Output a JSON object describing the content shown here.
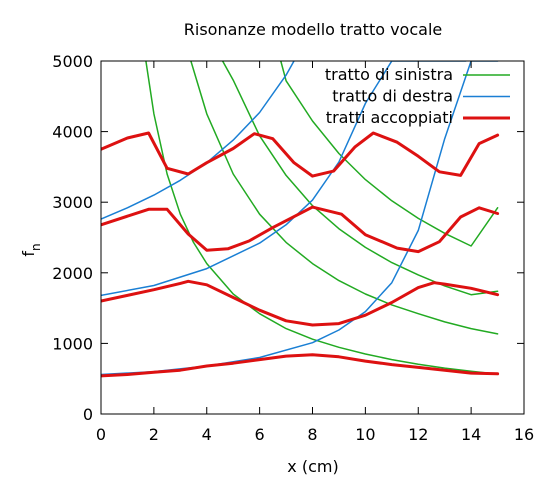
{
  "chart_data": {
    "type": "line",
    "title": "Risonanze modello tratto vocale",
    "xlabel": "x (cm)",
    "ylabel_main": "f",
    "ylabel_sub": "n",
    "xlim": [
      0,
      16
    ],
    "ylim": [
      0,
      5000
    ],
    "xticks": [
      "0",
      "2",
      "4",
      "6",
      "8",
      "10",
      "12",
      "14",
      "16"
    ],
    "yticks": [
      "0",
      "1000",
      "2000",
      "3000",
      "4000",
      "5000"
    ],
    "grid": false,
    "legend_position": "top-right",
    "legend": [
      {
        "label": "tratto di sinistra",
        "color": "#22aa22"
      },
      {
        "label": "tratto di destra",
        "color": "#1a7fd4"
      },
      {
        "label": "tratti accoppiati",
        "color": "#dd1111"
      }
    ],
    "series": [
      {
        "name": "tratto di sinistra",
        "color": "#22aa22",
        "width": 1.5,
        "curves": [
          {
            "x": [
              1.7,
              2.0,
              2.5,
              3.0,
              3.5,
              4.0,
              5.0,
              6.0,
              7.0,
              8.0,
              9.0,
              10.0,
              11.0,
              12.0,
              13.0,
              14.0,
              15.0
            ],
            "y": [
              5000,
              4250,
              3400,
              2830,
              2430,
              2130,
              1700,
              1420,
              1210,
              1060,
              945,
              850,
              770,
              705,
              650,
              605,
              565
            ]
          },
          {
            "x": [
              3.4,
              4.0,
              5.0,
              6.0,
              7.0,
              8.0,
              9.0,
              10.0,
              11.0,
              12.0,
              13.0,
              14.0,
              15.0
            ],
            "y": [
              5000,
              4250,
              3400,
              2830,
              2430,
              2130,
              1890,
              1700,
              1545,
              1420,
              1305,
              1210,
              1135
            ]
          },
          {
            "x": [
              4.6,
              5.0,
              6.0,
              7.0,
              8.0,
              9.0,
              10.0,
              11.0,
              12.0,
              13.0,
              14.0,
              15.0
            ],
            "y": [
              5000,
              4730,
              3940,
              3380,
              2950,
              2625,
              2360,
              2145,
              1970,
              1815,
              1690,
              1740
            ]
          },
          {
            "x": [
              6.8,
              7.0,
              8.0,
              9.0,
              10.0,
              11.0,
              12.0,
              13.0,
              14.0,
              15.0
            ],
            "y": [
              5000,
              4720,
              4150,
              3690,
              3320,
              3020,
              2770,
              2560,
              2380,
              2920
            ]
          }
        ]
      },
      {
        "name": "tratto di destra",
        "color": "#1a7fd4",
        "width": 1.5,
        "curves": [
          {
            "x": [
              0,
              2,
              4,
              6,
              8,
              9,
              10,
              11,
              12,
              13,
              14,
              14.5,
              15.0
            ],
            "y": [
              560,
              600,
              680,
              800,
              1010,
              1190,
              1450,
              1860,
              2600,
              3900,
              5000,
              5000,
              5000
            ]
          },
          {
            "x": [
              0,
              2,
              4,
              6,
              7,
              8,
              9,
              10,
              11,
              12,
              13,
              13.8
            ],
            "y": [
              1680,
              1820,
              2060,
              2420,
              2680,
              3030,
              3570,
              4400,
              5000,
              5000,
              5000,
              5000
            ]
          },
          {
            "x": [
              0,
              1,
              2,
              3,
              4,
              5,
              6,
              7,
              7.3
            ],
            "y": [
              2760,
              2920,
              3100,
              3310,
              3560,
              3880,
              4270,
              4800,
              5000
            ]
          }
        ]
      },
      {
        "name": "tratti accoppiati",
        "color": "#dd1111",
        "width": 3,
        "curves": [
          {
            "x": [
              0,
              1,
              2,
              3,
              4,
              5,
              6,
              7,
              8,
              9,
              10,
              11,
              12,
              13,
              14,
              15
            ],
            "y": [
              540,
              560,
              590,
              620,
              680,
              720,
              770,
              820,
              840,
              810,
              750,
              700,
              660,
              620,
              580,
              570
            ]
          },
          {
            "x": [
              0,
              1,
              2,
              3,
              3.3,
              4,
              5,
              6,
              7,
              8,
              9,
              10,
              11,
              12,
              12.6,
              13,
              14,
              15
            ],
            "y": [
              1600,
              1680,
              1760,
              1850,
              1880,
              1830,
              1650,
              1470,
              1320,
              1260,
              1280,
              1400,
              1580,
              1790,
              1860,
              1840,
              1780,
              1690
            ]
          },
          {
            "x": [
              0,
              1.8,
              2.5,
              3.3,
              4.0,
              4.8,
              5.6,
              6.5,
              8.0,
              9.1,
              10.0,
              11.2,
              12.0,
              12.8,
              13.6,
              14.3,
              15.0
            ],
            "y": [
              2680,
              2900,
              2900,
              2550,
              2320,
              2340,
              2450,
              2640,
              2930,
              2830,
              2540,
              2350,
              2300,
              2440,
              2790,
              2920,
              2840
            ]
          },
          {
            "x": [
              0,
              1.0,
              1.8,
              2.5,
              3.3,
              4.0,
              5.0,
              5.8,
              6.5,
              7.3,
              8.0,
              8.8,
              9.6,
              10.3,
              11.2,
              12.0,
              12.8,
              13.6,
              14.3,
              15.0
            ],
            "y": [
              3750,
              3910,
              3980,
              3480,
              3400,
              3560,
              3760,
              3970,
              3900,
              3560,
              3370,
              3440,
              3780,
              3980,
              3850,
              3650,
              3430,
              3380,
              3830,
              3950
            ]
          }
        ]
      }
    ]
  }
}
